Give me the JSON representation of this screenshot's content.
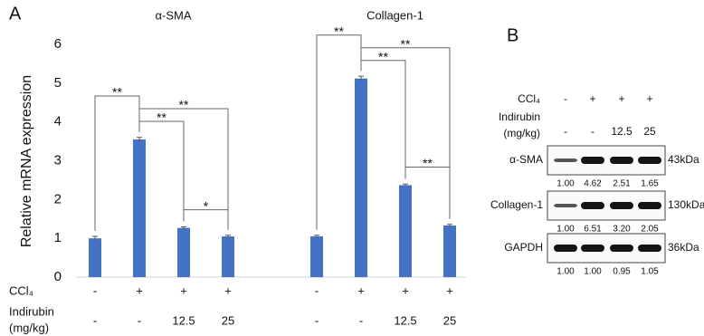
{
  "chart_data": {
    "type": "bar",
    "panel_label": "A",
    "y_label": "Relative mRNA expression",
    "ylim": [
      0,
      6
    ],
    "yticks": [
      0,
      1,
      2,
      3,
      4,
      5,
      6
    ],
    "grid": false,
    "color": "#4472c4",
    "series": [
      {
        "name": "α-SMA",
        "values": [
          1.0,
          3.55,
          1.27,
          1.05
        ],
        "errors": [
          0.05,
          0.05,
          0.03,
          0.03
        ],
        "comparisons": [
          {
            "from": 0,
            "to": 1,
            "label": "**"
          },
          {
            "from": 1,
            "to": 3,
            "label": "**"
          },
          {
            "from": 1,
            "to": 2,
            "label": "**"
          },
          {
            "from": 2,
            "to": 3,
            "label": "*"
          }
        ]
      },
      {
        "name": "Collagen-1",
        "values": [
          1.05,
          5.12,
          2.37,
          1.33
        ],
        "errors": [
          0.03,
          0.06,
          0.03,
          0.03
        ],
        "comparisons": [
          {
            "from": 0,
            "to": 1,
            "label": "**"
          },
          {
            "from": 1,
            "to": 3,
            "label": "**"
          },
          {
            "from": 1,
            "to": 2,
            "label": "**"
          },
          {
            "from": 2,
            "to": 3,
            "label": "**"
          }
        ]
      }
    ],
    "conditions": [
      {
        "label": [
          "CCl₄"
        ],
        "values": [
          "-",
          "+",
          "+",
          "+"
        ]
      },
      {
        "label": [
          "Indirubin",
          "(mg/kg)"
        ],
        "values": [
          "-",
          "-",
          "12.5",
          "25"
        ]
      }
    ]
  },
  "blot": {
    "panel_label": "B",
    "conditions": [
      {
        "label": [
          "CCl₄"
        ],
        "values": [
          "-",
          "+",
          "+",
          "+"
        ]
      },
      {
        "label": [
          "Indirubin",
          "(mg/kg)"
        ],
        "values": [
          "-",
          "-",
          "12.5",
          "25"
        ]
      }
    ],
    "rows": [
      {
        "name": "α-SMA",
        "size": "43kDa",
        "values": [
          "1.00",
          "4.62",
          "2.51",
          "1.65"
        ]
      },
      {
        "name": "Collagen-1",
        "size": "130kDa",
        "values": [
          "1.00",
          "6.51",
          "3.20",
          "2.05"
        ]
      },
      {
        "name": "GAPDH",
        "size": "36kDa",
        "values": [
          "1.00",
          "1.00",
          "0.95",
          "1.05"
        ]
      }
    ]
  }
}
